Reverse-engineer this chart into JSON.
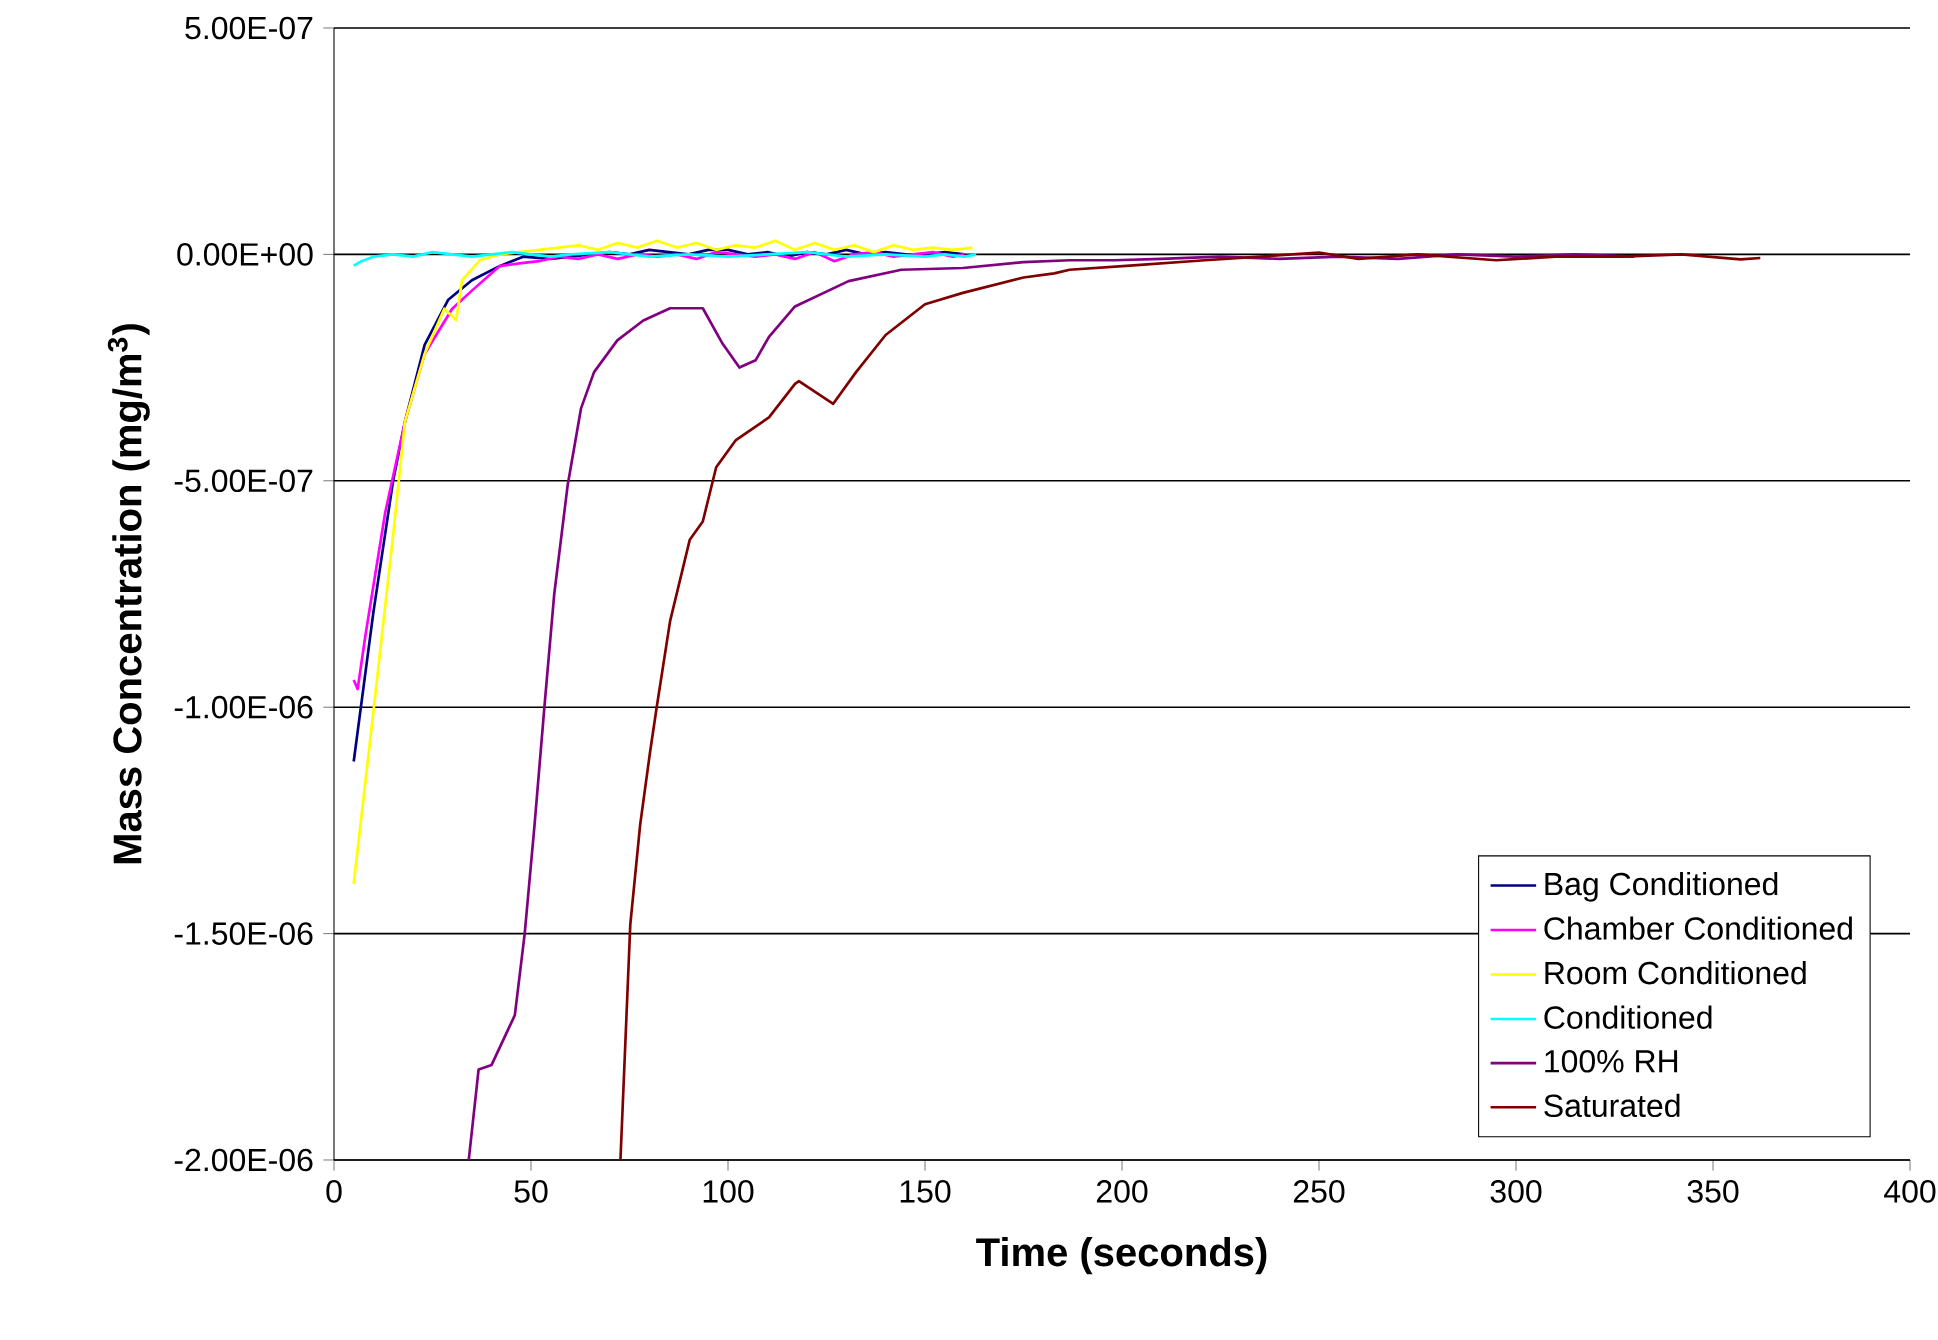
{
  "chart_data": {
    "type": "line",
    "xlabel": "Time (seconds)",
    "ylabel": "Mass Concentration (mg/m$^{3}$)",
    "xlim": [
      0,
      400
    ],
    "xticks": [
      0,
      50,
      100,
      150,
      200,
      250,
      300,
      350,
      400
    ],
    "ylim": [
      -2e-06,
      5e-07
    ],
    "yticks": [
      {
        "value": -2e-06,
        "label": "-2.00E-06"
      },
      {
        "value": -1.5e-06,
        "label": "-1.50E-06"
      },
      {
        "value": -1e-06,
        "label": "-1.00E-06"
      },
      {
        "value": -5e-07,
        "label": "-5.00E-07"
      },
      {
        "value": 0,
        "label": "0.00E+00"
      },
      {
        "value": 5e-07,
        "label": "5.00E-07"
      }
    ],
    "grid": "y",
    "legend": "bottom right",
    "line_style": "solid",
    "series": [
      {
        "name": "Bag Conditioned",
        "color": "#000080",
        "x": [
          5,
          10,
          15,
          18,
          23,
          29,
          35,
          42,
          48,
          55,
          60,
          65,
          70,
          75,
          80,
          85,
          90,
          95,
          100,
          105,
          110,
          115,
          120,
          125,
          130,
          135,
          140,
          145,
          150,
          155,
          160
        ],
        "values": [
          -1.12e-06,
          -7.9e-07,
          -5e-07,
          -3.7e-07,
          -2e-07,
          -1e-07,
          -5.7e-08,
          -2.6e-08,
          -5e-09,
          -1e-08,
          -5e-09,
          0,
          5e-09,
          0,
          1e-08,
          5e-09,
          0,
          1e-08,
          1e-08,
          0,
          5e-09,
          -5e-09,
          5e-09,
          0,
          1e-08,
          0,
          5e-09,
          0,
          0,
          5e-09,
          0
        ]
      },
      {
        "name": "Chamber Conditioned",
        "color": "#ff00ff",
        "x": [
          5,
          6,
          8,
          13,
          18,
          23,
          30,
          35,
          42,
          47,
          52,
          57,
          62,
          67,
          72,
          77,
          82,
          87,
          92,
          97,
          102,
          107,
          112,
          117,
          122,
          127,
          132,
          137,
          142,
          147,
          152,
          157,
          160
        ],
        "values": [
          -9.4e-07,
          -9.6e-07,
          -8.4e-07,
          -5.7e-07,
          -3.7e-07,
          -2.2e-07,
          -1.2e-07,
          -8e-08,
          -2.6e-08,
          -2e-08,
          -1.5e-08,
          -5e-09,
          -1e-08,
          0,
          -1e-08,
          0,
          -5e-09,
          0,
          -1e-08,
          5e-09,
          0,
          -5e-09,
          0,
          -1e-08,
          5e-09,
          -1.5e-08,
          0,
          5e-09,
          -5e-09,
          0,
          5e-09,
          -5e-09,
          0
        ]
      },
      {
        "name": "Room Conditioned",
        "color": "#ffff00",
        "x": [
          5,
          10,
          15,
          18,
          23,
          28,
          31,
          32.5,
          37,
          42,
          47,
          52,
          57,
          62,
          67,
          72,
          77,
          82,
          87,
          92,
          97,
          102,
          107,
          112,
          117,
          122,
          127,
          132,
          137,
          142,
          147,
          152,
          157,
          162
        ],
        "values": [
          -1.39e-06,
          -1.01e-06,
          -6.2e-07,
          -3.7e-07,
          -2.2e-07,
          -1.2e-07,
          -1.45e-07,
          -5.7e-08,
          -1.3e-08,
          0,
          5e-09,
          1e-08,
          1.5e-08,
          2e-08,
          1e-08,
          2.5e-08,
          1.5e-08,
          3e-08,
          1.5e-08,
          2.5e-08,
          1e-08,
          2e-08,
          1.5e-08,
          3e-08,
          1e-08,
          2.5e-08,
          1e-08,
          2e-08,
          5e-09,
          2e-08,
          1e-08,
          1.5e-08,
          1e-08,
          1.5e-08
        ]
      },
      {
        "name": "Conditioned",
        "color": "#00ffff",
        "x": [
          5,
          7,
          10,
          15,
          20,
          25,
          30,
          35,
          40,
          45,
          50,
          55,
          60,
          70,
          80,
          90,
          100,
          110,
          120,
          130,
          140,
          150,
          155,
          160,
          163
        ],
        "values": [
          -2.5e-08,
          -1.5e-08,
          -5e-09,
          0,
          -5e-09,
          5e-09,
          0,
          -5e-09,
          0,
          5e-09,
          0,
          -5e-09,
          0,
          5e-09,
          -5e-09,
          0,
          -5e-09,
          0,
          5e-09,
          -5e-09,
          0,
          -5e-09,
          0,
          -5e-09,
          0
        ]
      },
      {
        "name": "100% RH",
        "color": "#800080",
        "x": [
          34.2,
          36.7,
          40,
          45.9,
          48.4,
          50.9,
          53.4,
          55.9,
          59.3,
          62.7,
          66,
          71.9,
          78.5,
          85.3,
          93.6,
          98.6,
          102.9,
          107,
          110.4,
          117,
          130.6,
          144,
          159.6,
          175,
          186.7,
          198,
          210,
          225,
          240,
          255,
          270,
          285,
          300,
          315,
          330
        ],
        "values": [
          -2e-06,
          -1.8e-06,
          -1.79e-06,
          -1.68e-06,
          -1.5e-06,
          -1.26e-06,
          -1e-06,
          -7.5e-07,
          -5.1e-07,
          -3.4e-07,
          -2.6e-07,
          -1.9e-07,
          -1.46e-07,
          -1.19e-07,
          -1.19e-07,
          -1.97e-07,
          -2.5e-07,
          -2.34e-07,
          -1.82e-07,
          -1.15e-07,
          -5.9e-08,
          -3.4e-08,
          -3e-08,
          -1.7e-08,
          -1.3e-08,
          -1.3e-08,
          -1e-08,
          -5e-09,
          -1e-08,
          -5e-09,
          -1e-08,
          0,
          -5e-09,
          0,
          -5e-09
        ]
      },
      {
        "name": "Saturated",
        "color": "#800000",
        "x": [
          72.7,
          75.2,
          77.7,
          80.2,
          81.9,
          85.3,
          90.3,
          93.6,
          97,
          102,
          110.4,
          117,
          118,
          126.7,
          132.5,
          140,
          150,
          159.6,
          175,
          182.8,
          186.7,
          202,
          221,
          235,
          250,
          260,
          275,
          295,
          310,
          327,
          342,
          357,
          362
        ],
        "values": [
          -2e-06,
          -1.48e-06,
          -1.26e-06,
          -1.1e-06,
          -1e-06,
          -8.1e-07,
          -6.3e-07,
          -5.9e-07,
          -4.7e-07,
          -4.1e-07,
          -3.6e-07,
          -2.86e-07,
          -2.8e-07,
          -3.3e-07,
          -2.6e-07,
          -1.78e-07,
          -1.1e-07,
          -8.5e-08,
          -5.1e-08,
          -4.2e-08,
          -3.4e-08,
          -2.5e-08,
          -1.3e-08,
          -5e-09,
          4e-09,
          -1e-08,
          0,
          -1.3e-08,
          -5e-09,
          -5e-09,
          0,
          -1.1e-08,
          -8e-09
        ]
      }
    ]
  }
}
